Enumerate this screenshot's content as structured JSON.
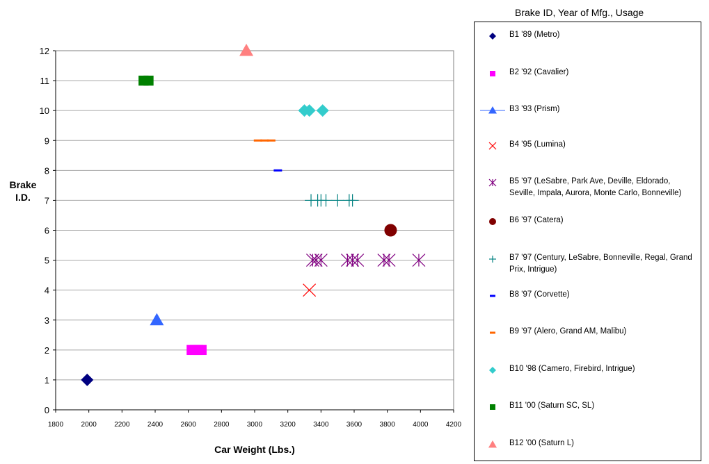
{
  "chart_data": {
    "type": "scatter",
    "xlabel": "Car Weight (Lbs.)",
    "ylabel": "Brake\nI.D.",
    "xlim": [
      1800,
      4200
    ],
    "ylim": [
      0,
      12
    ],
    "xticks": [
      "1800",
      "2000",
      "2200",
      "2400",
      "2600",
      "2800",
      "3000",
      "3200",
      "3400",
      "3600",
      "3800",
      "4000",
      "4200"
    ],
    "yticks": [
      "0",
      "1",
      "2",
      "3",
      "4",
      "5",
      "6",
      "7",
      "8",
      "9",
      "10",
      "11",
      "12"
    ],
    "grid": "horizontal",
    "legend_title": "Brake ID, Year of Mfg., Usage",
    "legend_position": "right",
    "series": [
      {
        "name": "B1 '89 (Metro)",
        "marker": "diamond",
        "color": "#000080",
        "points": [
          [
            1990,
            1
          ]
        ]
      },
      {
        "name": "B2 '92 (Cavalier)",
        "marker": "square",
        "color": "#ff00ff",
        "points": [
          [
            2620,
            2
          ],
          [
            2640,
            2
          ],
          [
            2660,
            2
          ],
          [
            2680,
            2
          ]
        ]
      },
      {
        "name": "B3 '93 (Prism)",
        "marker": "triangle",
        "color": "#3366ff",
        "points": [
          [
            2410,
            3
          ]
        ]
      },
      {
        "name": "B4 '95 (Lumina)",
        "marker": "x",
        "color": "#ff0000",
        "points": [
          [
            3330,
            4
          ]
        ]
      },
      {
        "name": "B5 '97 (LeSabre, Park Ave, Deville, Eldorado, Seville, Impala, Aurora, Monte Carlo, Bonneville)",
        "marker": "asterisk",
        "color": "#800080",
        "points": [
          [
            3350,
            5
          ],
          [
            3370,
            5
          ],
          [
            3400,
            5
          ],
          [
            3560,
            5
          ],
          [
            3590,
            5
          ],
          [
            3620,
            5
          ],
          [
            3780,
            5
          ],
          [
            3810,
            5
          ],
          [
            3990,
            5
          ]
        ]
      },
      {
        "name": "B6 '97 (Catera)",
        "marker": "circle",
        "color": "#800000",
        "points": [
          [
            3820,
            6
          ]
        ]
      },
      {
        "name": "B7 '97 (Century, LeSabre, Bonneville, Regal, Grand Prix, Intrigue)",
        "marker": "plus",
        "color": "#008080",
        "points": [
          [
            3340,
            7
          ],
          [
            3380,
            7
          ],
          [
            3400,
            7
          ],
          [
            3430,
            7
          ],
          [
            3500,
            7
          ],
          [
            3570,
            7
          ],
          [
            3590,
            7
          ]
        ]
      },
      {
        "name": "B8 '97 (Corvette)",
        "marker": "dash",
        "color": "#0000ff",
        "points": [
          [
            3140,
            8
          ]
        ]
      },
      {
        "name": "B9 '97 (Alero, Grand AM, Malibu)",
        "marker": "dash",
        "color": "#ff6600",
        "points": [
          [
            3020,
            9
          ],
          [
            3060,
            9
          ],
          [
            3100,
            9
          ]
        ]
      },
      {
        "name": "B10 '98 (Camero, Firebird, Intrigue)",
        "marker": "diamond",
        "color": "#33cccc",
        "points": [
          [
            3300,
            10
          ],
          [
            3330,
            10
          ],
          [
            3410,
            10
          ]
        ]
      },
      {
        "name": "B11 '00 (Saturn SC, SL)",
        "marker": "square",
        "color": "#008000",
        "points": [
          [
            2330,
            11
          ],
          [
            2360,
            11
          ]
        ]
      },
      {
        "name": "B12 '00 (Saturn L)",
        "marker": "triangle",
        "color": "#ff8080",
        "points": [
          [
            2950,
            12
          ]
        ]
      }
    ]
  }
}
